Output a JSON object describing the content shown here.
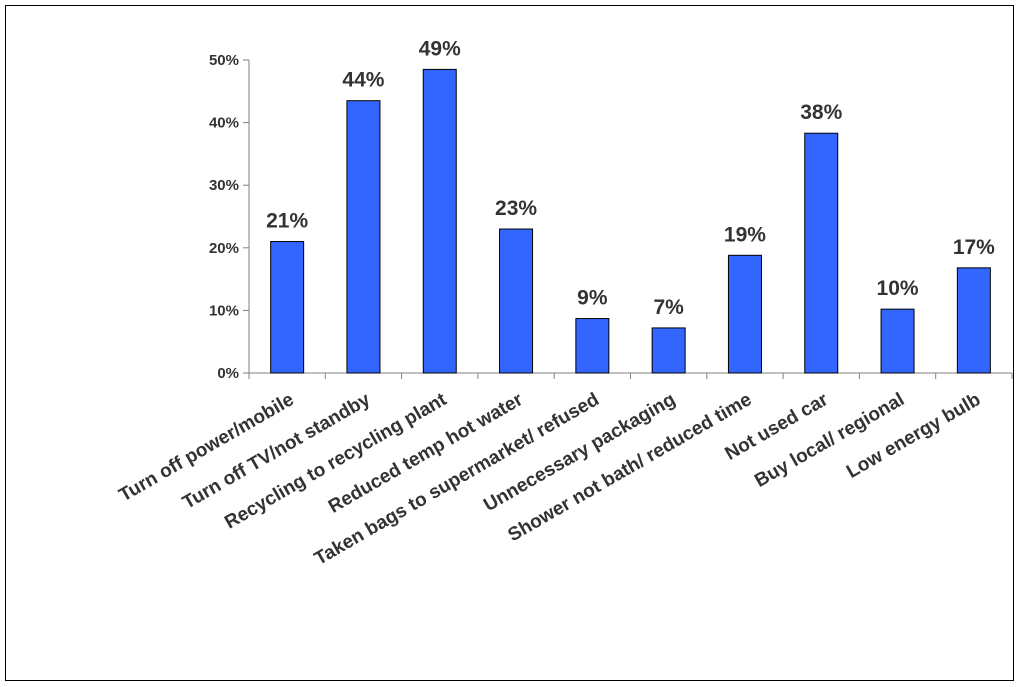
{
  "chart_data": {
    "type": "bar",
    "categories": [
      "Turn off power/mobile",
      "Turn off TV/not standby",
      "Recycling to recycling plant",
      "Reduced temp hot water",
      "Taken bags to supermarket/ refused",
      "Unnecessary packaging",
      "Shower not bath/ reduced time",
      "Not used car",
      "Buy local/ regional",
      "Low energy bulb"
    ],
    "values": [
      21,
      43.5,
      48.5,
      23,
      8.7,
      7.2,
      18.8,
      38.3,
      10.2,
      16.8
    ],
    "data_labels": [
      "21%",
      "44%",
      "49%",
      "23%",
      "9%",
      "7%",
      "19%",
      "38%",
      "10%",
      "17%"
    ],
    "y_ticks": [
      0,
      10,
      20,
      30,
      40,
      50
    ],
    "y_tick_labels": [
      "0%",
      "10%",
      "20%",
      "30%",
      "40%",
      "50%"
    ],
    "ylim": [
      0,
      50
    ],
    "title": "",
    "xlabel": "",
    "ylabel": "",
    "grid": false,
    "legend": "none",
    "bar_color": "#3366ff",
    "bar_edge_color": "#000000"
  }
}
